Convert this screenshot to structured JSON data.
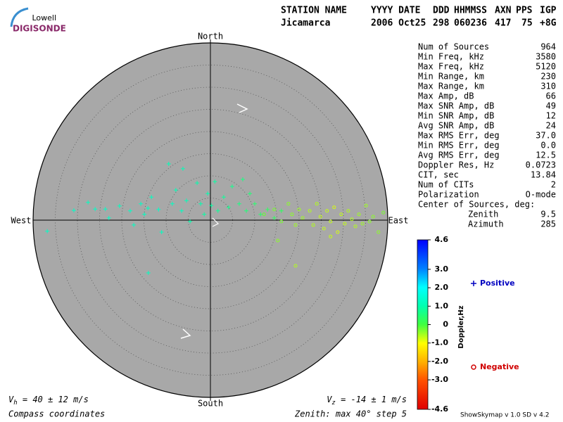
{
  "logo": {
    "top": "Lowell",
    "bottom": "DIGISONDE"
  },
  "header": {
    "labels": [
      "STATION NAME",
      "YYYY DATE",
      "DDD",
      "HHMMSS",
      "AXN",
      "PPS",
      "IGP"
    ],
    "values": [
      "Jicamarca",
      "2006 Oct25",
      "298",
      "060236",
      "417",
      "75",
      "+8G"
    ]
  },
  "stats": {
    "rows": [
      [
        "Num of Sources",
        "964"
      ],
      [
        "Min Freq, kHz",
        "3580"
      ],
      [
        "Max Freq, kHz",
        "5120"
      ],
      [
        "Min Range, km",
        "230"
      ],
      [
        "Max Range, km",
        "310"
      ],
      [
        "Max Amp, dB",
        "66"
      ],
      [
        "Max SNR Amp, dB",
        "49"
      ],
      [
        "Min SNR Amp, dB",
        "12"
      ],
      [
        "Avg SNR Amp, dB",
        "24"
      ],
      [
        "Max RMS Err, deg",
        "37.0"
      ],
      [
        "Min RMS Err, deg",
        "0.0"
      ],
      [
        "Avg RMS Err, deg",
        "12.5"
      ],
      [
        "Doppler Res, Hz",
        "0.0723"
      ],
      [
        "CIT, sec",
        "13.84"
      ],
      [
        "Num of CITs",
        "2"
      ],
      [
        "Polarization",
        "O-mode"
      ]
    ],
    "center": {
      "label": "Center of Sources, deg:",
      "rows": [
        [
          "Zenith",
          "9.5"
        ],
        [
          "Azimuth",
          "285"
        ]
      ]
    }
  },
  "footer": {
    "vh": [
      "V",
      "h",
      " = 40 ± 12 m/s"
    ],
    "vz": [
      "V",
      "z",
      " = -14 ± 1 m/s"
    ],
    "coords": "Compass coordinates",
    "zenith": "Zenith: max 40°  step 5",
    "version": "ShowSkymap v 1.0  SD v 4.2"
  },
  "chart_data": {
    "type": "skymap",
    "compass": {
      "north": "North",
      "south": "South",
      "east": "East",
      "west": "West"
    },
    "rlim": [
      0,
      40
    ],
    "rticks": [
      5,
      10,
      15,
      20,
      25,
      30,
      35,
      40
    ],
    "colorbar": {
      "label": "Doppler,Hz",
      "clim": [
        -4.6,
        4.6
      ],
      "ticks": [
        4.6,
        {
          "value": 3,
          "label": "3.0"
        },
        {
          "value": 2,
          "label": "2.0"
        },
        {
          "value": 1,
          "label": "1.0"
        },
        0,
        {
          "value": -1,
          "label": "-1.0"
        },
        {
          "value": -2,
          "label": "-2.0"
        },
        {
          "value": -3,
          "label": "-3.0"
        },
        -4.6
      ]
    },
    "series": [
      {
        "name": "Positive",
        "marker": "plus",
        "legend_color": "#0000c0",
        "x": [
          -36.8,
          -30.8,
          -27.6,
          -23.7,
          -20.5,
          -18.1,
          -17.3,
          -15.7,
          -14.1,
          -13.3,
          -11.7,
          -11.0,
          -9.4,
          -8.6,
          -7.8,
          -6.5,
          -5.4,
          -4.6,
          -3.0,
          -2.2,
          -1.4,
          -0.6,
          0.2,
          1.0,
          1.7,
          3.0,
          4.1,
          4.9,
          6.5,
          8.1,
          8.9,
          10.0,
          11.3,
          12.9,
          14.4,
          -14.0,
          -22.9,
          -26.0,
          -14.9,
          -6.2,
          7.3,
          16.0
        ],
        "y": [
          -2.5,
          2.2,
          4.0,
          2.5,
          3.2,
          2.1,
          -1.1,
          3.7,
          2.7,
          5.2,
          2.4,
          -2.7,
          12.7,
          3.7,
          6.8,
          2.1,
          4.4,
          -0.3,
          8.4,
          3.7,
          1.3,
          6.0,
          3.3,
          8.7,
          2.1,
          5.2,
          2.9,
          7.6,
          3.7,
          2.1,
          6.0,
          3.7,
          1.3,
          2.4,
          0.5,
          -11.9,
          0.5,
          2.5,
          1.3,
          11.6,
          9.2,
          2.1
        ],
        "doppler": [
          1.3,
          1.3,
          1.2,
          1.3,
          1.2,
          1.3,
          1.2,
          1.3,
          1.2,
          1.2,
          1.3,
          1.2,
          1.1,
          1.2,
          1.1,
          1.2,
          1.1,
          1.0,
          1.0,
          1.0,
          0.9,
          1.0,
          0.9,
          0.9,
          0.8,
          0.8,
          0.7,
          0.7,
          0.6,
          0.5,
          0.5,
          0.4,
          0.4,
          0.3,
          0.3,
          1.2,
          1.3,
          1.3,
          1.2,
          1.1,
          0.6,
          0.3
        ]
      },
      {
        "name": "Negative",
        "marker": "circle",
        "legend_color": "#d00000",
        "x": [
          12.1,
          14.4,
          16.0,
          17.6,
          18.4,
          19.2,
          20.0,
          20.8,
          22.4,
          23.2,
          24.0,
          24.8,
          25.6,
          26.3,
          27.1,
          27.9,
          28.7,
          29.5,
          30.3,
          31.1,
          31.9,
          32.7,
          33.5,
          34.3,
          35.1,
          35.9,
          36.7,
          37.9,
          39.0,
          19.2,
          15.2,
          27.1
        ],
        "y": [
          1.3,
          2.4,
          -0.3,
          3.7,
          1.3,
          -1.1,
          2.4,
          0.5,
          2.1,
          -1.1,
          3.7,
          0.8,
          -1.9,
          2.1,
          -0.3,
          2.9,
          -2.7,
          1.3,
          -0.8,
          2.1,
          0.2,
          -1.4,
          1.3,
          -0.8,
          3.3,
          -0.3,
          0.8,
          -2.7,
          1.7,
          -10.3,
          -4.6,
          -3.7
        ],
        "doppler": [
          -0.2,
          -0.3,
          -0.3,
          -0.4,
          -0.4,
          -0.5,
          -0.5,
          -0.5,
          -0.6,
          -0.6,
          -0.6,
          -0.7,
          -0.7,
          -0.7,
          -0.7,
          -0.8,
          -0.8,
          -0.7,
          -0.7,
          -0.6,
          -0.6,
          -0.6,
          -0.5,
          -0.5,
          -0.5,
          -0.4,
          -0.4,
          -0.4,
          -0.3,
          -0.6,
          -0.4,
          -0.7
        ]
      }
    ]
  }
}
